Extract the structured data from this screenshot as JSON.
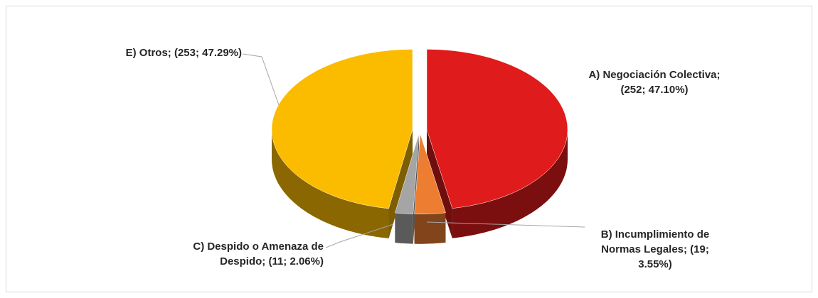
{
  "chart_data": {
    "type": "pie",
    "values": [
      252,
      19,
      11,
      253
    ],
    "value_labels": [
      "A) Negociación Colectiva; (252; 47.10%)",
      "B) Incumplimiento de Normas Legales; (19; 3.55%)",
      "C) Despido o Amenaza de Despido; (11; 2.06%)",
      "E) Otros; (253; 47.29%)"
    ],
    "colors": [
      "#e01b1b",
      "#ed7d31",
      "#a5a5a5",
      "#fbbc00"
    ]
  }
}
